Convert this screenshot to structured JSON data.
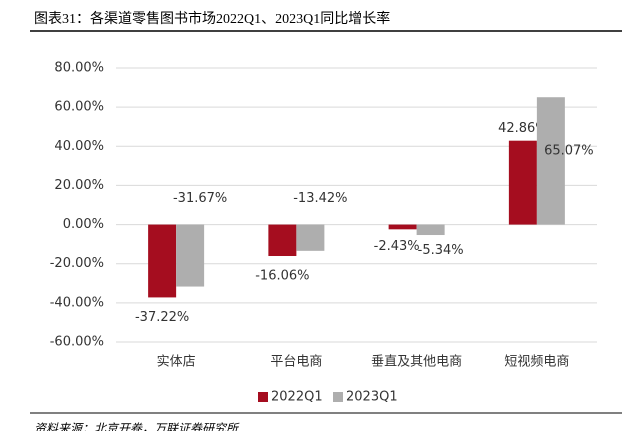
{
  "chart_data": {
    "type": "bar",
    "title": "图表31：各渠道零售图书市场2022Q1、2023Q1同比增长率",
    "source": "资料来源：北京开卷，万联证券研究所",
    "categories": [
      "实体店",
      "平台电商",
      "垂直及其他电商",
      "短视频电商"
    ],
    "series": [
      {
        "name": "2022Q1",
        "color": "#a50d1f",
        "values": [
          -37.22,
          -16.06,
          -2.43,
          42.86
        ],
        "value_labels": [
          "-37.22%",
          "-16.06%",
          "-2.43%",
          "42.86%"
        ]
      },
      {
        "name": "2023Q1",
        "color": "#aeaeae",
        "values": [
          -31.67,
          -13.42,
          -5.34,
          65.07
        ],
        "value_labels": [
          "-31.67%",
          "-13.42%",
          "-5.34%",
          "65.07%"
        ]
      }
    ],
    "ylim": [
      -60,
      80
    ],
    "yticks": [
      {
        "value": -60,
        "label": "-60.00%"
      },
      {
        "value": -40,
        "label": "-40.00%"
      },
      {
        "value": -20,
        "label": "-20.00%"
      },
      {
        "value": 0,
        "label": "0.00%"
      },
      {
        "value": 20,
        "label": "20.00%"
      },
      {
        "value": 40,
        "label": "40.00%"
      },
      {
        "value": 60,
        "label": "60.00%"
      },
      {
        "value": 80,
        "label": "80.00%"
      }
    ],
    "grid": true,
    "legend": "bottom"
  }
}
